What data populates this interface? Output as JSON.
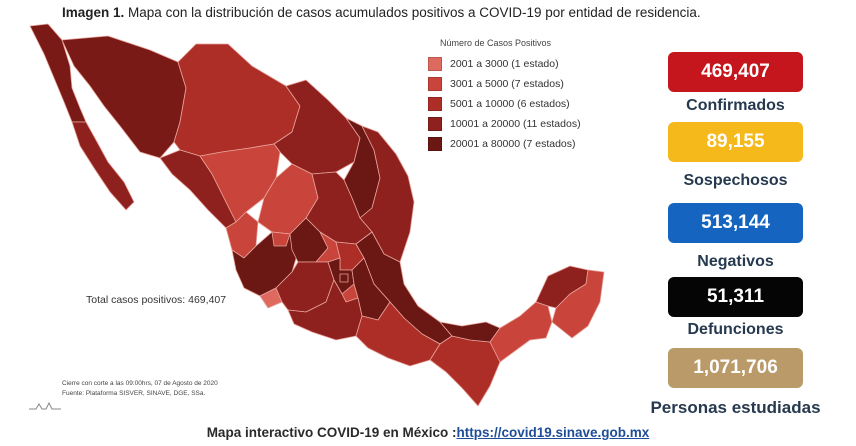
{
  "caption": {
    "prefix": "Imagen 1.",
    "text": "Mapa con la distribución de casos acumulados positivos a COVID-19 por entidad de residencia."
  },
  "legend": {
    "title": "Número de Casos Positivos",
    "items": [
      {
        "label": "2001 a   3000  (1 estado)",
        "color": "#de6a5f"
      },
      {
        "label": "3001 a   5000  (7 estados)",
        "color": "#c9443a"
      },
      {
        "label": "5001 a 10000  (6 estados)",
        "color": "#ad2d27"
      },
      {
        "label": "10001 a 20000  (11 estados)",
        "color": "#8e211d"
      },
      {
        "label": "20001 a 80000  (7 estados)",
        "color": "#6b1714"
      }
    ]
  },
  "total": "Total casos positivos: 469,407",
  "footnote": {
    "line1": "Cierre con corte a las 09:00hrs, 07 de Agosto de 2020",
    "line2": "Fuente: Plataforma SISVER, SINAVE, DGE, SSa."
  },
  "stats": [
    {
      "value": "469,407",
      "label": "Confirmados",
      "color": "#c4161c",
      "textColor": "#ffffff"
    },
    {
      "value": "89,155",
      "label": "Sospechosos",
      "color": "#f6b91c",
      "textColor": "#ffffff"
    },
    {
      "value": "513,144",
      "label": "Negativos",
      "color": "#1565c0",
      "textColor": "#ffffff"
    },
    {
      "value": "51,311",
      "label": "Defunciones",
      "color": "#050505",
      "textColor": "#ffffff"
    },
    {
      "value": "1,071,706",
      "label": "Personas estudiadas",
      "color": "#b99a68",
      "textColor": "#ffffff"
    }
  ],
  "bottom": {
    "text": "Mapa interactivo COVID-19 en México :",
    "link": "https://covid19.sinave.gob.mx"
  }
}
